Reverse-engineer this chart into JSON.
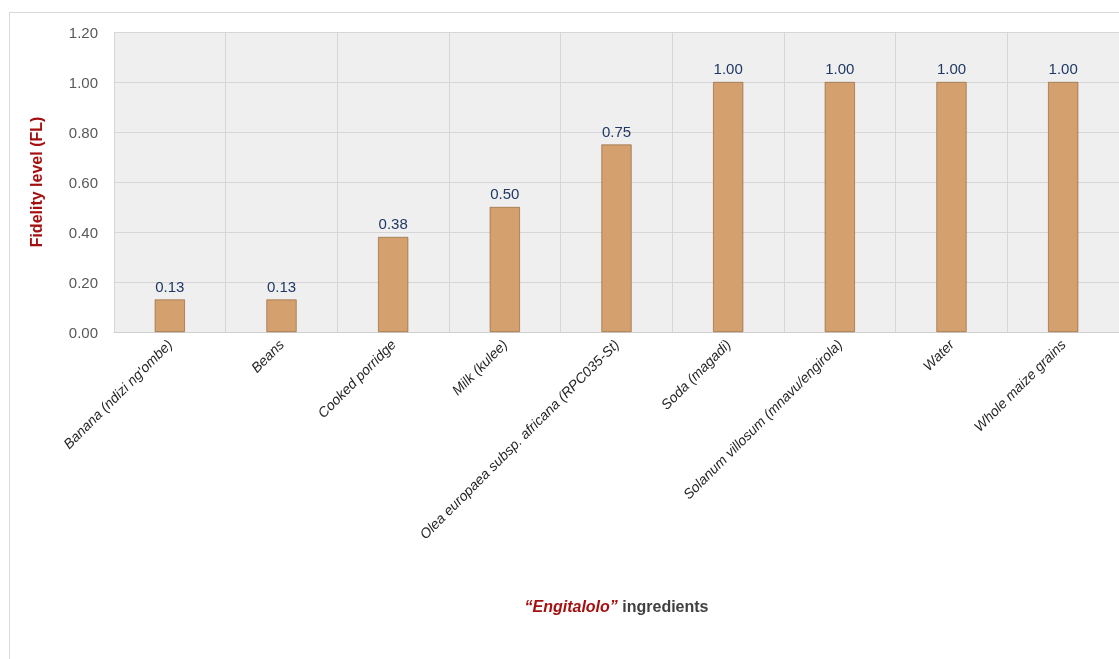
{
  "chart_data": {
    "type": "bar",
    "xlabel": "“Engitalolo” ingredients",
    "ylabel": "Fidelity level (FL)",
    "categories": [
      "Banana (ndizi ng'ombe)",
      "Beans",
      "Cooked porridge",
      "Milk (kulee)",
      "Olea europaea subsp. africana (RPC035-St)",
      "Soda (magadi)",
      "Solanum villosum (mnavu/engirola)",
      "Water",
      "Whole maize grains"
    ],
    "values": [
      0.13,
      0.13,
      0.38,
      0.5,
      0.75,
      1.0,
      1.0,
      1.0,
      1.0
    ],
    "value_labels": [
      "0.13",
      "0.13",
      "0.38",
      "0.50",
      "0.75",
      "1.00",
      "1.00",
      "1.00",
      "1.00"
    ],
    "color": "#d3a06e",
    "ylim": [
      0,
      1.2
    ],
    "yticks": [
      {
        "value": 0,
        "label": "0.00"
      },
      {
        "value": 0.2,
        "label": "0.20"
      },
      {
        "value": 0.4,
        "label": "0.40"
      },
      {
        "value": 0.6,
        "label": "0.60"
      },
      {
        "value": 0.8,
        "label": "0.80"
      },
      {
        "value": 1.0,
        "label": "1.00"
      },
      {
        "value": 1.2,
        "label": "1.20"
      }
    ],
    "grid": true
  }
}
